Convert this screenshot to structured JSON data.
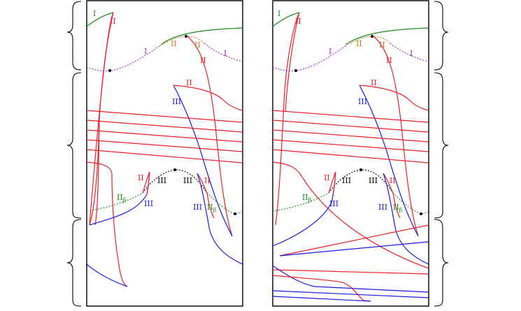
{
  "colors": {
    "green": "#1a8a1a",
    "red": "#e8202a",
    "blue": "#1a1ae8",
    "purple": "#9a2aba",
    "orange": "#c87820",
    "black": "#000000"
  },
  "labels": {
    "I": "I",
    "II": "II",
    "III": "III",
    "II_beta_base": "II",
    "beta": "β"
  }
}
